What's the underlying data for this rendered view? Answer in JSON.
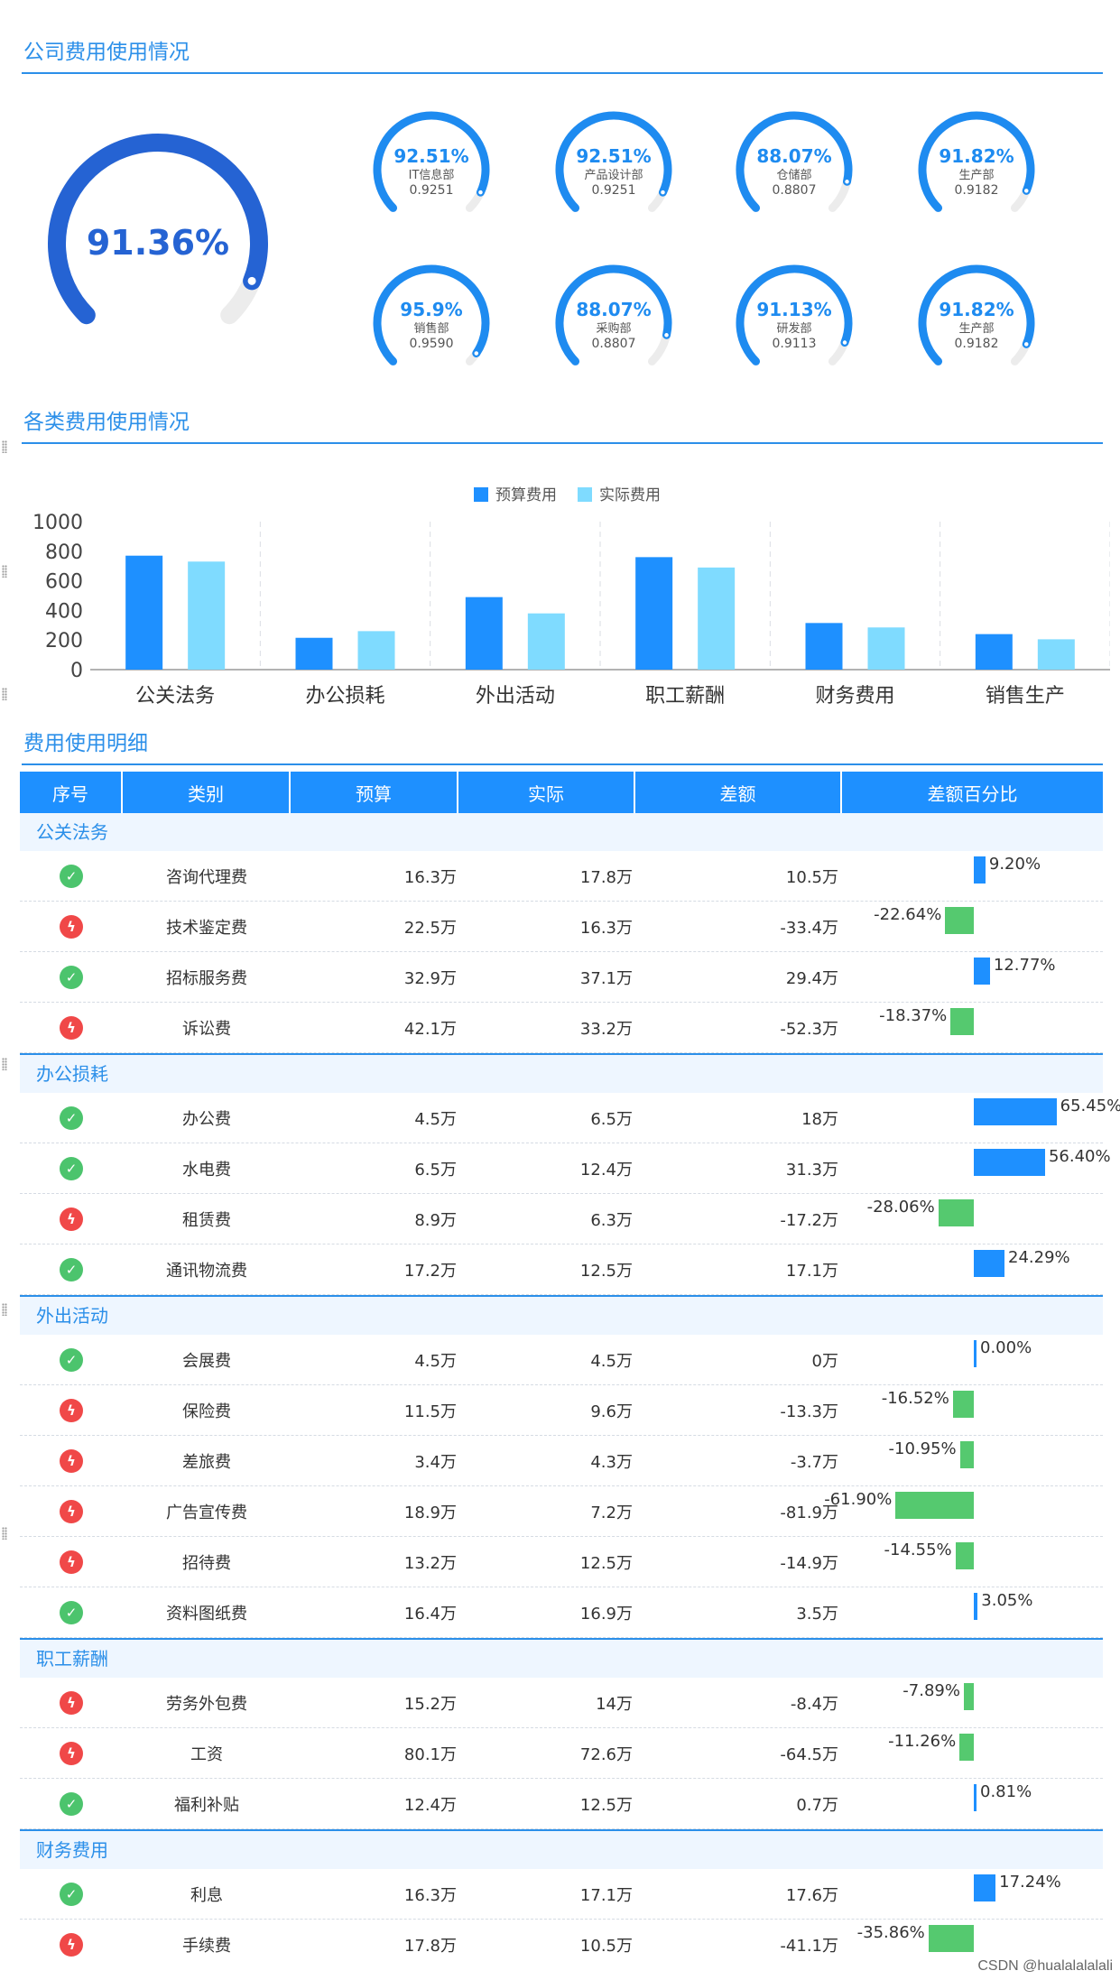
{
  "sections": {
    "s1": "公司费用使用情况",
    "s2": "各类费用使用情况",
    "s3": "费用使用明细"
  },
  "main_gauge": {
    "value": 0.9136,
    "label": "91.36%"
  },
  "small_gauges": [
    {
      "pct": "92.51%",
      "name": "IT信息部",
      "value": "0.9251"
    },
    {
      "pct": "92.51%",
      "name": "产品设计部",
      "value": "0.9251"
    },
    {
      "pct": "88.07%",
      "name": "仓储部",
      "value": "0.8807"
    },
    {
      "pct": "91.82%",
      "name": "生产部",
      "value": "0.9182"
    },
    {
      "pct": "95.9%",
      "name": "销售部",
      "value": "0.9590"
    },
    {
      "pct": "88.07%",
      "name": "采购部",
      "value": "0.8807"
    },
    {
      "pct": "91.13%",
      "name": "研发部",
      "value": "0.9113"
    },
    {
      "pct": "91.82%",
      "name": "生产部",
      "value": "0.9182"
    }
  ],
  "chart_data": {
    "type": "bar",
    "categories": [
      "公关法务",
      "办公损耗",
      "外出活动",
      "职工薪酬",
      "财务费用",
      "销售生产"
    ],
    "series": [
      {
        "name": "预算费用",
        "values": [
          770,
          215,
          490,
          760,
          315,
          240
        ]
      },
      {
        "name": "实际费用",
        "values": [
          730,
          260,
          380,
          690,
          285,
          205
        ]
      }
    ],
    "ylim": [
      0,
      1000
    ],
    "yticks": [
      "0",
      "200",
      "400",
      "600",
      "800",
      "1000"
    ],
    "legend": "top-center",
    "colors": {
      "budget": "#1e90ff",
      "actual": "#7fdbff"
    }
  },
  "table": {
    "headers": [
      "序号",
      "类别",
      "预算",
      "实际",
      "差额",
      "差额百分比"
    ],
    "groups": [
      {
        "name": "公关法务",
        "rows": [
          {
            "status": "ok",
            "cat": "咨询代理费",
            "budget": "16.3万",
            "actual": "17.8万",
            "diff": "10.5万",
            "pct": "9.20%",
            "frac": 0.092
          },
          {
            "status": "bad",
            "cat": "技术鉴定费",
            "budget": "22.5万",
            "actual": "16.3万",
            "diff": "-33.4万",
            "pct": "-22.64%",
            "frac": -0.2264
          },
          {
            "status": "ok",
            "cat": "招标服务费",
            "budget": "32.9万",
            "actual": "37.1万",
            "diff": "29.4万",
            "pct": "12.77%",
            "frac": 0.1277
          },
          {
            "status": "bad",
            "cat": "诉讼费",
            "budget": "42.1万",
            "actual": "33.2万",
            "diff": "-52.3万",
            "pct": "-18.37%",
            "frac": -0.1837
          }
        ]
      },
      {
        "name": "办公损耗",
        "rows": [
          {
            "status": "ok",
            "cat": "办公费",
            "budget": "4.5万",
            "actual": "6.5万",
            "diff": "18万",
            "pct": "65.45%",
            "frac": 0.6545
          },
          {
            "status": "ok",
            "cat": "水电费",
            "budget": "6.5万",
            "actual": "12.4万",
            "diff": "31.3万",
            "pct": "56.40%",
            "frac": 0.564
          },
          {
            "status": "bad",
            "cat": "租赁费",
            "budget": "8.9万",
            "actual": "6.3万",
            "diff": "-17.2万",
            "pct": "-28.06%",
            "frac": -0.2806
          },
          {
            "status": "ok",
            "cat": "通讯物流费",
            "budget": "17.2万",
            "actual": "12.5万",
            "diff": "17.1万",
            "pct": "24.29%",
            "frac": 0.2429
          }
        ]
      },
      {
        "name": "外出活动",
        "rows": [
          {
            "status": "ok",
            "cat": "会展费",
            "budget": "4.5万",
            "actual": "4.5万",
            "diff": "0万",
            "pct": "0.00%",
            "frac": 0
          },
          {
            "status": "bad",
            "cat": "保险费",
            "budget": "11.5万",
            "actual": "9.6万",
            "diff": "-13.3万",
            "pct": "-16.52%",
            "frac": -0.1652
          },
          {
            "status": "bad",
            "cat": "差旅费",
            "budget": "3.4万",
            "actual": "4.3万",
            "diff": "-3.7万",
            "pct": "-10.95%",
            "frac": -0.1095
          },
          {
            "status": "bad",
            "cat": "广告宣传费",
            "budget": "18.9万",
            "actual": "7.2万",
            "diff": "-81.9万",
            "pct": "-61.90%",
            "frac": -0.619
          },
          {
            "status": "bad",
            "cat": "招待费",
            "budget": "13.2万",
            "actual": "12.5万",
            "diff": "-14.9万",
            "pct": "-14.55%",
            "frac": -0.1455
          },
          {
            "status": "ok",
            "cat": "资料图纸费",
            "budget": "16.4万",
            "actual": "16.9万",
            "diff": "3.5万",
            "pct": "3.05%",
            "frac": 0.0305
          }
        ]
      },
      {
        "name": "职工薪酬",
        "rows": [
          {
            "status": "bad",
            "cat": "劳务外包费",
            "budget": "15.2万",
            "actual": "14万",
            "diff": "-8.4万",
            "pct": "-7.89%",
            "frac": -0.0789
          },
          {
            "status": "bad",
            "cat": "工资",
            "budget": "80.1万",
            "actual": "72.6万",
            "diff": "-64.5万",
            "pct": "-11.26%",
            "frac": -0.1126
          },
          {
            "status": "ok",
            "cat": "福利补贴",
            "budget": "12.4万",
            "actual": "12.5万",
            "diff": "0.7万",
            "pct": "0.81%",
            "frac": 0.0081
          }
        ]
      },
      {
        "name": "财务费用",
        "rows": [
          {
            "status": "ok",
            "cat": "利息",
            "budget": "16.3万",
            "actual": "17.1万",
            "diff": "17.6万",
            "pct": "17.24%",
            "frac": 0.1724
          },
          {
            "status": "bad",
            "cat": "手续费",
            "budget": "17.8万",
            "actual": "10.5万",
            "diff": "-41.1万",
            "pct": "-35.86%",
            "frac": -0.3586
          }
        ]
      }
    ]
  },
  "watermark": "CSDN @hualalalalali"
}
